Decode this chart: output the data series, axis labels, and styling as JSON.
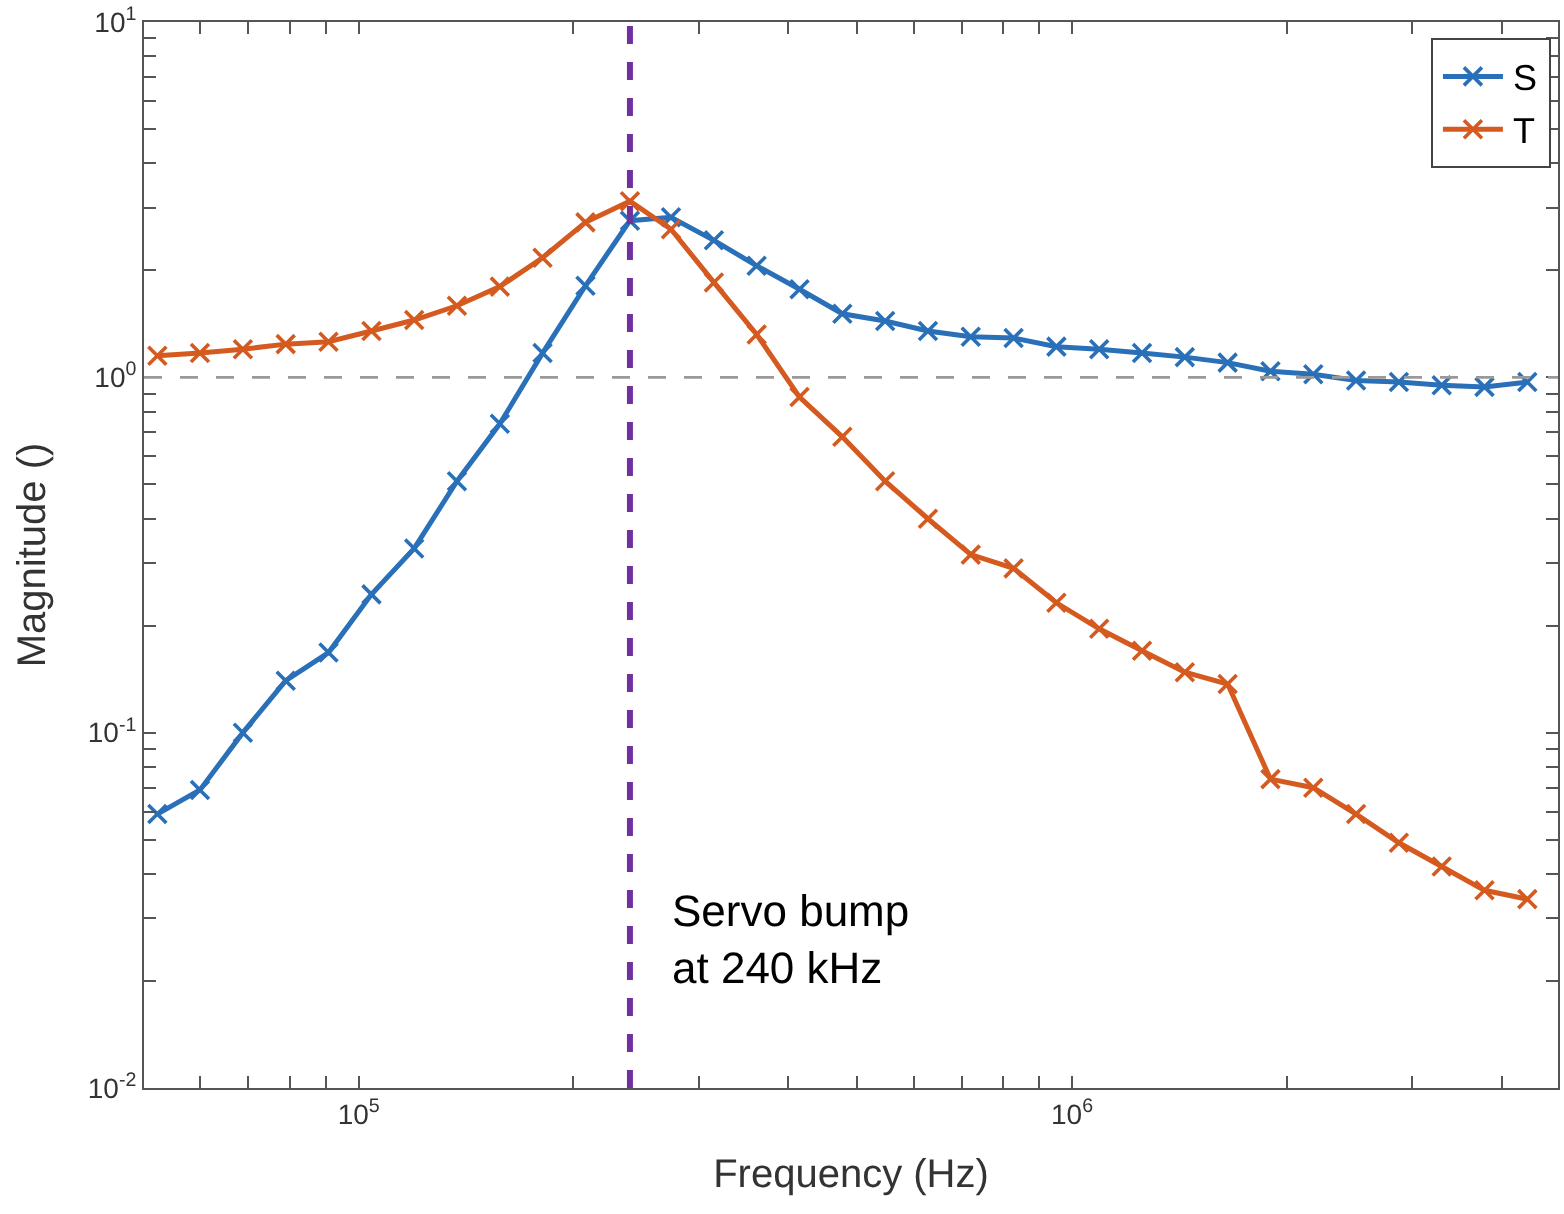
{
  "chart_data": {
    "type": "line",
    "xlabel": "Frequency (Hz)",
    "ylabel": "Magnitude ()",
    "x": [
      52200,
      59900,
      68800,
      79000,
      90700,
      104200,
      119600,
      137300,
      157700,
      181000,
      207900,
      240000,
      274000,
      314700,
      361300,
      414900,
      476400,
      547000,
      628000,
      721100,
      828000,
      950700,
      1091600,
      1253400,
      1439100,
      1652400,
      1897300,
      2178500,
      2501300,
      2872000,
      3297600,
      3786300,
      4347400
    ],
    "series": [
      {
        "name": "S",
        "color": "#2a70b8",
        "values": [
          0.059,
          0.069,
          0.1,
          0.14,
          0.168,
          0.245,
          0.33,
          0.51,
          0.74,
          1.17,
          1.81,
          2.76,
          2.82,
          2.43,
          2.06,
          1.77,
          1.51,
          1.44,
          1.35,
          1.3,
          1.29,
          1.22,
          1.2,
          1.17,
          1.14,
          1.1,
          1.04,
          1.02,
          0.98,
          0.97,
          0.95,
          0.94,
          0.97
        ]
      },
      {
        "name": "T",
        "color": "#d45a1f",
        "values": [
          1.15,
          1.17,
          1.2,
          1.24,
          1.26,
          1.35,
          1.45,
          1.59,
          1.8,
          2.17,
          2.73,
          3.13,
          2.61,
          1.85,
          1.32,
          0.88,
          0.68,
          0.51,
          0.4,
          0.317,
          0.29,
          0.232,
          0.196,
          0.17,
          0.148,
          0.137,
          0.074,
          0.07,
          0.059,
          0.049,
          0.042,
          0.036,
          0.034
        ]
      }
    ],
    "log": "xy",
    "marker": "cross",
    "line_style": "solid",
    "legend": "top right",
    "xlim": [
      50000,
      4800000
    ],
    "xticks": [
      {
        "value": 60000,
        "label": null
      },
      {
        "value": 70000,
        "label": null
      },
      {
        "value": 80000,
        "label": null
      },
      {
        "value": 90000,
        "label": null
      },
      {
        "value": 100000,
        "label": "10$^{5}$"
      },
      {
        "value": 200000,
        "label": null
      },
      {
        "value": 300000,
        "label": null
      },
      {
        "value": 400000,
        "label": null
      },
      {
        "value": 500000,
        "label": null
      },
      {
        "value": 600000,
        "label": null
      },
      {
        "value": 700000,
        "label": null
      },
      {
        "value": 800000,
        "label": null
      },
      {
        "value": 900000,
        "label": null
      },
      {
        "value": 1000000,
        "label": "10$^{6}$"
      },
      {
        "value": 2000000,
        "label": null
      },
      {
        "value": 3000000,
        "label": null
      },
      {
        "value": 4000000,
        "label": null
      }
    ],
    "ylim": [
      0.01,
      10
    ],
    "yticks": [
      {
        "value": 0.01,
        "label": "10$^{-2}$"
      },
      {
        "value": 0.02,
        "label": null
      },
      {
        "value": 0.03,
        "label": null
      },
      {
        "value": 0.04,
        "label": null
      },
      {
        "value": 0.05,
        "label": null
      },
      {
        "value": 0.06,
        "label": null
      },
      {
        "value": 0.07,
        "label": null
      },
      {
        "value": 0.08,
        "label": null
      },
      {
        "value": 0.09,
        "label": null
      },
      {
        "value": 0.1,
        "label": "10$^{-1}$"
      },
      {
        "value": 0.2,
        "label": null
      },
      {
        "value": 0.3,
        "label": null
      },
      {
        "value": 0.4,
        "label": null
      },
      {
        "value": 0.5,
        "label": null
      },
      {
        "value": 0.6,
        "label": null
      },
      {
        "value": 0.7,
        "label": null
      },
      {
        "value": 0.8,
        "label": null
      },
      {
        "value": 0.9,
        "label": null
      },
      {
        "value": 1,
        "label": "10$^{0}$"
      },
      {
        "value": 2,
        "label": null
      },
      {
        "value": 3,
        "label": null
      },
      {
        "value": 4,
        "label": null
      },
      {
        "value": 5,
        "label": null
      },
      {
        "value": 6,
        "label": null
      },
      {
        "value": 7,
        "label": null
      },
      {
        "value": 8,
        "label": null
      },
      {
        "value": 9,
        "label": null
      },
      {
        "value": 10,
        "label": "10$^{1}$"
      }
    ],
    "ref_lines": [
      {
        "axis": "y",
        "value": 1,
        "color": "#999999",
        "line_style": "dashed"
      },
      {
        "axis": "x",
        "value": 240000,
        "color": "#7030a0",
        "line_style": "dashed"
      }
    ],
    "annotations": [
      "Servo bump\nat 240 kHz"
    ]
  }
}
